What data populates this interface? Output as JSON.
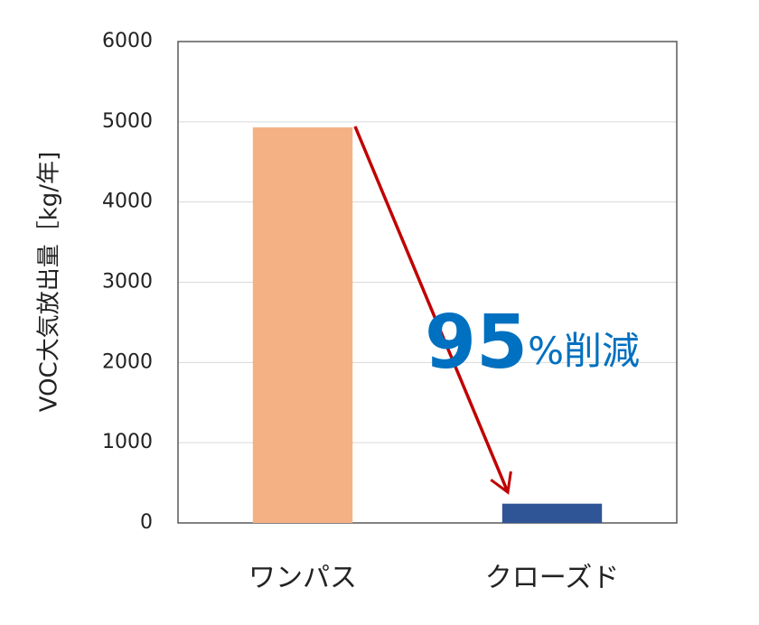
{
  "chart_data": {
    "type": "bar",
    "y_label": "VOC大気放出量［kg/年]",
    "categories": [
      "ワンパス",
      "クローズド"
    ],
    "values": [
      4930,
      240
    ],
    "colors": [
      "#f4b183",
      "#2f5597"
    ],
    "ylim": [
      0,
      6000
    ],
    "yticks": [
      0,
      1000,
      2000,
      3000,
      4000,
      5000,
      6000
    ],
    "grid": true,
    "annotation": "95%削減",
    "annotation_color": "#0070c0"
  }
}
